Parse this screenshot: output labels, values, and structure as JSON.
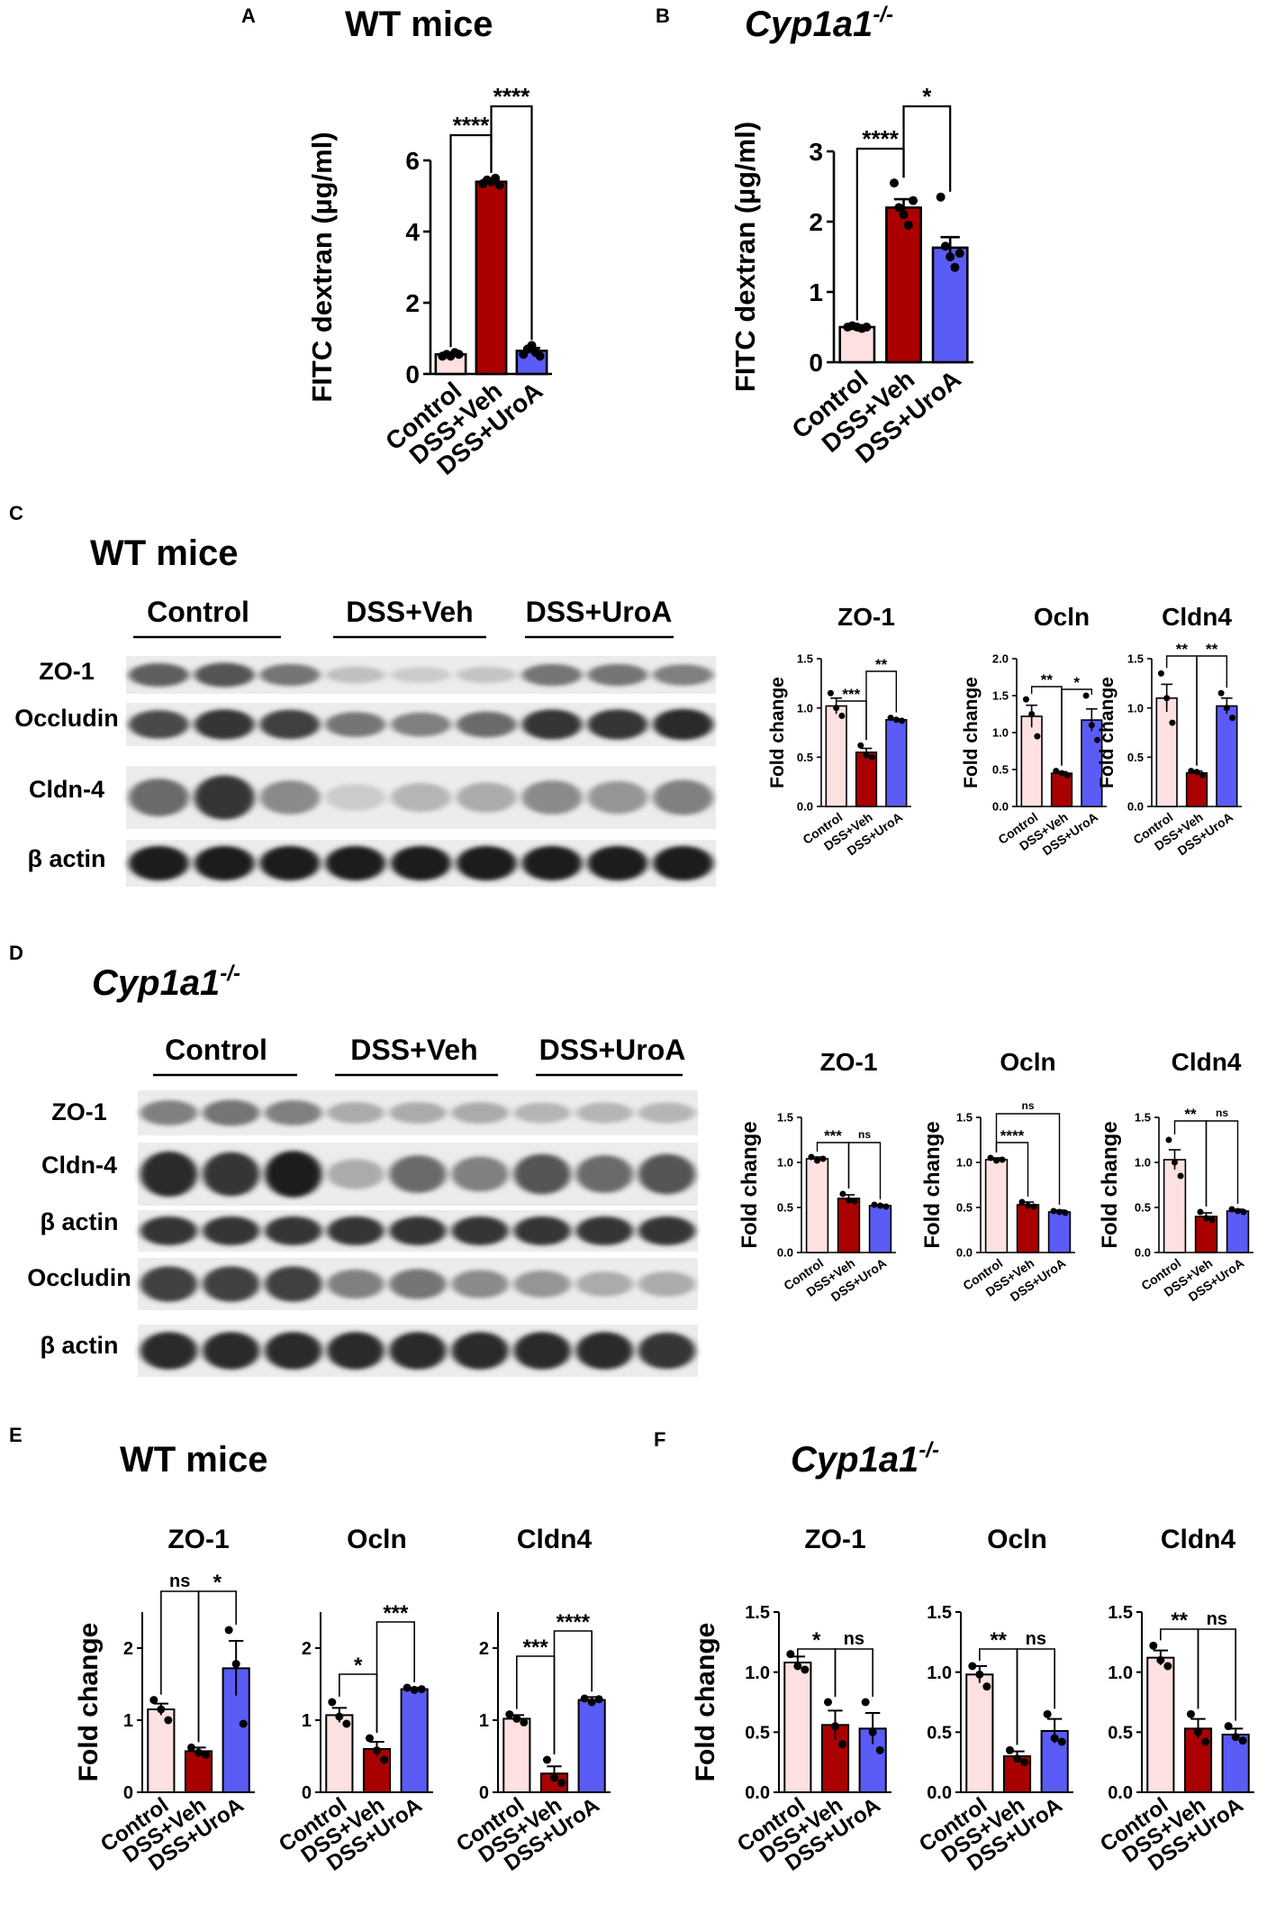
{
  "panels": [
    {
      "id": "A",
      "letter": "A",
      "title": "WT mice",
      "title_italic": false,
      "title_sup": ""
    },
    {
      "id": "B",
      "letter": "B",
      "title": "Cyp1a1",
      "title_italic": true,
      "title_sup": "-/-"
    },
    {
      "id": "C",
      "letter": "C",
      "title": "WT mice",
      "title_italic": false,
      "title_sup": ""
    },
    {
      "id": "D",
      "letter": "D",
      "title": "Cyp1a1",
      "title_italic": true,
      "title_sup": "-/-"
    },
    {
      "id": "E",
      "letter": "E",
      "title": "WT mice",
      "title_italic": false,
      "title_sup": ""
    },
    {
      "id": "F",
      "letter": "F",
      "title": "Cyp1a1",
      "title_italic": true,
      "title_sup": "-/-"
    }
  ],
  "colors": {
    "control": "#fde0e0",
    "dss_veh": "#aa0000",
    "dss_uroa": "#5a5cf5",
    "ink": "#000000"
  },
  "blots": [
    {
      "id": "C",
      "groups": [
        "Control",
        "DSS+Veh",
        "DSS+UroA"
      ],
      "bands": [
        "ZO-1",
        "Occludin",
        "Cldn-4",
        "β actin"
      ]
    },
    {
      "id": "D",
      "groups": [
        "Control",
        "DSS+Veh",
        "DSS+UroA"
      ],
      "bands": [
        "ZO-1",
        "Cldn-4",
        "β actin",
        "Occludin",
        "β actin"
      ]
    }
  ],
  "chart_data": [
    {
      "id": "A",
      "type": "bar",
      "ylabel": "FITC dextran (µg/ml)",
      "categories": [
        "Control",
        "DSS+Veh",
        "DSS+UroA"
      ],
      "values": [
        0.55,
        5.4,
        0.65
      ],
      "errors": [
        0.03,
        0.06,
        0.08
      ],
      "points": [
        [
          0.5,
          0.55,
          0.5,
          0.6,
          0.55
        ],
        [
          5.35,
          5.45,
          5.4,
          5.5,
          5.3
        ],
        [
          0.55,
          0.7,
          0.8,
          0.6,
          0.5
        ]
      ],
      "ylim": [
        0,
        6
      ],
      "yticks": [
        "0",
        "2",
        "4",
        "6"
      ],
      "comparisons": [
        {
          "from": 0,
          "to": 1,
          "label": "****"
        },
        {
          "from": 1,
          "to": 2,
          "label": "****"
        }
      ]
    },
    {
      "id": "B",
      "type": "bar",
      "ylabel": "FITC dextran (µg/ml)",
      "categories": [
        "Control",
        "DSS+Veh",
        "DSS+UroA"
      ],
      "values": [
        0.5,
        2.2,
        1.63
      ],
      "errors": [
        0.02,
        0.12,
        0.15
      ],
      "points": [
        [
          0.5,
          0.52,
          0.5,
          0.48,
          0.5
        ],
        [
          2.55,
          2.2,
          2.1,
          1.95,
          2.3
        ],
        [
          2.35,
          1.65,
          1.5,
          1.35,
          1.55
        ]
      ],
      "ylim": [
        0,
        3
      ],
      "yticks": [
        "0",
        "1",
        "2",
        "3"
      ],
      "comparisons": [
        {
          "from": 0,
          "to": 1,
          "label": "****"
        },
        {
          "from": 1,
          "to": 2,
          "label": "*"
        }
      ]
    },
    {
      "id": "C-ZO-1",
      "type": "bar",
      "title": "ZO-1",
      "ylabel": "Fold change",
      "categories": [
        "Control",
        "DSS+Veh",
        "DSS+UroA"
      ],
      "values": [
        1.02,
        0.55,
        0.88
      ],
      "errors": [
        0.08,
        0.04,
        0.01
      ],
      "points": [
        [
          1.15,
          1.0,
          0.92
        ],
        [
          0.62,
          0.52,
          0.5
        ],
        [
          0.9,
          0.88,
          0.87
        ]
      ],
      "ylim": [
        0,
        1.5
      ],
      "yticks": [
        "0.0",
        "0.5",
        "1.0",
        "1.5"
      ],
      "comparisons": [
        {
          "from": 0,
          "to": 1,
          "label": "***"
        },
        {
          "from": 1,
          "to": 2,
          "label": "**"
        }
      ]
    },
    {
      "id": "C-Ocln",
      "type": "bar",
      "title": "Ocln",
      "ylabel": "Fold change",
      "categories": [
        "Control",
        "DSS+Veh",
        "DSS+UroA"
      ],
      "values": [
        1.22,
        0.45,
        1.17
      ],
      "errors": [
        0.15,
        0.02,
        0.15
      ],
      "points": [
        [
          1.45,
          1.25,
          0.95
        ],
        [
          0.48,
          0.45,
          0.42
        ],
        [
          1.5,
          1.1,
          0.9
        ]
      ],
      "ylim": [
        0,
        2.0
      ],
      "yticks": [
        "0.0",
        "0.5",
        "1.0",
        "1.5",
        "2.0"
      ],
      "comparisons": [
        {
          "from": 0,
          "to": 1,
          "label": "**"
        },
        {
          "from": 1,
          "to": 2,
          "label": "*"
        }
      ]
    },
    {
      "id": "C-Cldn4",
      "type": "bar",
      "title": "Cldn4",
      "ylabel": "Fold change",
      "categories": [
        "Control",
        "DSS+Veh",
        "DSS+UroA"
      ],
      "values": [
        1.1,
        0.34,
        1.02
      ],
      "errors": [
        0.14,
        0.02,
        0.08
      ],
      "points": [
        [
          1.35,
          1.1,
          0.85
        ],
        [
          0.36,
          0.35,
          0.32
        ],
        [
          1.15,
          1.0,
          0.9
        ]
      ],
      "ylim": [
        0,
        1.5
      ],
      "yticks": [
        "0.0",
        "0.5",
        "1.0",
        "1.5"
      ],
      "comparisons": [
        {
          "from": 0,
          "to": 1,
          "label": "**"
        },
        {
          "from": 1,
          "to": 2,
          "label": "**"
        }
      ]
    },
    {
      "id": "D-ZO-1",
      "type": "bar",
      "title": "ZO-1",
      "ylabel": "Fold change",
      "categories": [
        "Control",
        "DSS+Veh",
        "DSS+UroA"
      ],
      "values": [
        1.04,
        0.6,
        0.52
      ],
      "errors": [
        0.02,
        0.04,
        0.01
      ],
      "points": [
        [
          1.06,
          1.02,
          1.04
        ],
        [
          0.65,
          0.58,
          0.57
        ],
        [
          0.53,
          0.52,
          0.51
        ]
      ],
      "ylim": [
        0,
        1.5
      ],
      "yticks": [
        "0.0",
        "0.5",
        "1.0",
        "1.5"
      ],
      "comparisons": [
        {
          "from": 0,
          "to": 1,
          "label": "***"
        },
        {
          "from": 1,
          "to": 2,
          "label": "ns"
        }
      ]
    },
    {
      "id": "D-Ocln",
      "type": "bar",
      "title": "Ocln",
      "ylabel": "Fold change",
      "categories": [
        "Control",
        "DSS+Veh",
        "DSS+UroA"
      ],
      "values": [
        1.03,
        0.53,
        0.45
      ],
      "errors": [
        0.02,
        0.03,
        0.02
      ],
      "points": [
        [
          1.05,
          1.02,
          1.03
        ],
        [
          0.56,
          0.52,
          0.51
        ],
        [
          0.46,
          0.45,
          0.44
        ]
      ],
      "ylim": [
        0,
        1.5
      ],
      "yticks": [
        "0.0",
        "0.5",
        "1.0",
        "1.5"
      ],
      "comparisons": [
        {
          "from": 0,
          "to": 1,
          "label": "****"
        },
        {
          "from": 0,
          "to": 2,
          "label": "ns"
        }
      ]
    },
    {
      "id": "D-Cldn4",
      "type": "bar",
      "title": "Cldn4",
      "ylabel": "Fold change",
      "categories": [
        "Control",
        "DSS+Veh",
        "DSS+UroA"
      ],
      "values": [
        1.03,
        0.4,
        0.46
      ],
      "errors": [
        0.11,
        0.04,
        0.02
      ],
      "points": [
        [
          1.25,
          1.0,
          0.85
        ],
        [
          0.45,
          0.38,
          0.36
        ],
        [
          0.48,
          0.46,
          0.45
        ]
      ],
      "ylim": [
        0,
        1.5
      ],
      "yticks": [
        "0.0",
        "0.5",
        "1.0",
        "1.5"
      ],
      "comparisons": [
        {
          "from": 0,
          "to": 1,
          "label": "**"
        },
        {
          "from": 1,
          "to": 2,
          "label": "ns"
        }
      ]
    },
    {
      "id": "E-ZO-1",
      "type": "bar",
      "title": "ZO-1",
      "ylabel": "Fold change",
      "categories": [
        "Control",
        "DSS+Veh",
        "DSS+UroA"
      ],
      "values": [
        1.15,
        0.57,
        1.72
      ],
      "errors": [
        0.08,
        0.05,
        0.38
      ],
      "points": [
        [
          1.28,
          1.15,
          1.0
        ],
        [
          0.62,
          0.55,
          0.52
        ],
        [
          2.25,
          1.78,
          0.95
        ]
      ],
      "ylim": [
        0,
        2.5
      ],
      "yticks": [
        "0",
        "1",
        "2"
      ],
      "comparisons": [
        {
          "from": 0,
          "to": 1,
          "label": "ns"
        },
        {
          "from": 1,
          "to": 2,
          "label": "*"
        }
      ]
    },
    {
      "id": "E-Ocln",
      "type": "bar",
      "title": "Ocln",
      "ylabel": "",
      "categories": [
        "Control",
        "DSS+Veh",
        "DSS+UroA"
      ],
      "values": [
        1.07,
        0.6,
        1.43
      ],
      "errors": [
        0.1,
        0.1,
        0.02
      ],
      "points": [
        [
          1.25,
          1.05,
          0.95
        ],
        [
          0.75,
          0.58,
          0.45
        ],
        [
          1.45,
          1.42,
          1.43
        ]
      ],
      "ylim": [
        0,
        2.5
      ],
      "yticks": [
        "0",
        "1",
        "2"
      ],
      "comparisons": [
        {
          "from": 0,
          "to": 1,
          "label": "*"
        },
        {
          "from": 1,
          "to": 2,
          "label": "***"
        }
      ]
    },
    {
      "id": "E-Cldn4",
      "type": "bar",
      "title": "Cldn4",
      "ylabel": "",
      "categories": [
        "Control",
        "DSS+Veh",
        "DSS+UroA"
      ],
      "values": [
        1.02,
        0.26,
        1.28
      ],
      "errors": [
        0.05,
        0.1,
        0.04
      ],
      "points": [
        [
          1.08,
          1.02,
          0.97
        ],
        [
          0.45,
          0.2,
          0.13
        ],
        [
          1.3,
          1.25,
          1.29
        ]
      ],
      "ylim": [
        0,
        2.5
      ],
      "yticks": [
        "0",
        "1",
        "2"
      ],
      "comparisons": [
        {
          "from": 0,
          "to": 1,
          "label": "***"
        },
        {
          "from": 1,
          "to": 2,
          "label": "****"
        }
      ]
    },
    {
      "id": "F-ZO-1",
      "type": "bar",
      "title": "ZO-1",
      "ylabel": "Fold change",
      "categories": [
        "Control",
        "DSS+Veh",
        "DSS+UroA"
      ],
      "values": [
        1.08,
        0.56,
        0.53
      ],
      "errors": [
        0.05,
        0.12,
        0.13
      ],
      "points": [
        [
          1.15,
          1.05,
          1.02
        ],
        [
          0.75,
          0.55,
          0.4
        ],
        [
          0.75,
          0.5,
          0.35
        ]
      ],
      "ylim": [
        0,
        1.5
      ],
      "yticks": [
        "0.0",
        "0.5",
        "1.0",
        "1.5"
      ],
      "comparisons": [
        {
          "from": 0,
          "to": 1,
          "label": "*"
        },
        {
          "from": 1,
          "to": 2,
          "label": "ns"
        }
      ]
    },
    {
      "id": "F-Ocln",
      "type": "bar",
      "title": "Ocln",
      "ylabel": "",
      "categories": [
        "Control",
        "DSS+Veh",
        "DSS+UroA"
      ],
      "values": [
        0.98,
        0.3,
        0.51
      ],
      "errors": [
        0.07,
        0.04,
        0.1
      ],
      "points": [
        [
          1.05,
          0.98,
          0.88
        ],
        [
          0.35,
          0.28,
          0.25
        ],
        [
          0.65,
          0.45,
          0.42
        ]
      ],
      "ylim": [
        0,
        1.5
      ],
      "yticks": [
        "0.0",
        "0.5",
        "1.0",
        "1.5"
      ],
      "comparisons": [
        {
          "from": 0,
          "to": 1,
          "label": "**"
        },
        {
          "from": 1,
          "to": 2,
          "label": "ns"
        }
      ]
    },
    {
      "id": "F-Cldn4",
      "type": "bar",
      "title": "Cldn4",
      "ylabel": "",
      "categories": [
        "Control",
        "DSS+Veh",
        "DSS+UroA"
      ],
      "values": [
        1.12,
        0.53,
        0.48
      ],
      "errors": [
        0.06,
        0.08,
        0.05
      ],
      "points": [
        [
          1.22,
          1.1,
          1.05
        ],
        [
          0.65,
          0.5,
          0.42
        ],
        [
          0.55,
          0.46,
          0.43
        ]
      ],
      "ylim": [
        0,
        1.5
      ],
      "yticks": [
        "0.0",
        "0.5",
        "1.0",
        "1.5"
      ],
      "comparisons": [
        {
          "from": 0,
          "to": 1,
          "label": "**"
        },
        {
          "from": 1,
          "to": 2,
          "label": "ns"
        }
      ]
    }
  ]
}
